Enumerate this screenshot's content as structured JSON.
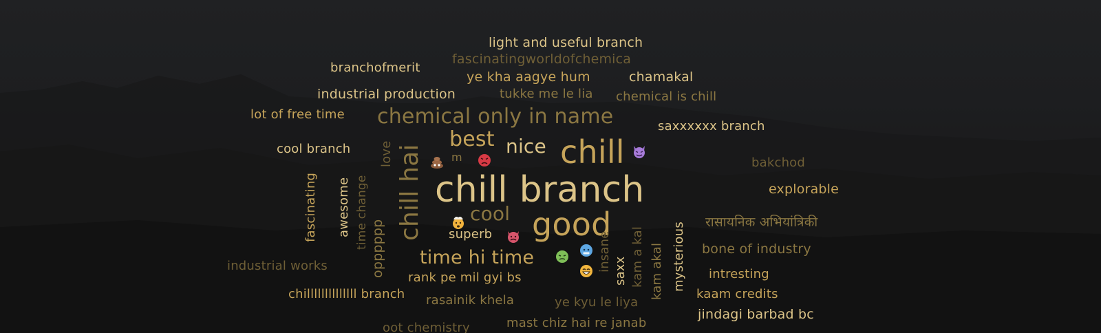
{
  "colors": {
    "bright": "#dcc488",
    "mid": "#c6a45a",
    "dim": "#8b7742",
    "dark": "#6f5f36"
  },
  "words": {
    "w1": "light and useful branch",
    "w2": "fascinatingworldofchemica",
    "w3": "branchofmerit",
    "w4": "ye kha aagye hum",
    "w5": "chamakal",
    "w6": "industrial production",
    "w7": "tukke me le lia",
    "w8": "chemical is chill",
    "w9": "lot of free time",
    "w10": "chemical only in name",
    "w11": "saxxxxxx branch",
    "w12": "cool branch",
    "w13": "best",
    "w14": "nice",
    "w15": "chill",
    "w16": "m",
    "w17": "bakchod",
    "w18": "chill branch",
    "w19": "explorable",
    "w20": "cool",
    "w21": "good",
    "w22": "रासायनिक अभियांत्रिकी",
    "w23": "superb",
    "w24": "bone of industry",
    "w25": "time hi time",
    "w26": "industrial works",
    "w27": "rank pe mil gyi bs",
    "w28": "intresting",
    "w29": "chillllllllllllll branch",
    "w30": "kaam credits",
    "w31": "rasainik khela",
    "w32": "ye kyu le liya",
    "w33": "jindagi barbad bc",
    "w34": "mast chiz hai re janab",
    "w35": "oot chemistry",
    "v1": "love",
    "v2": "chill hai",
    "v3": "fascinating",
    "v4": "awesome",
    "v5": "time change",
    "v6": "opppppp",
    "v7": "kam a kal",
    "v8": "insane",
    "v9": "saxx",
    "v10": "kam akal",
    "v11": "mysterious"
  },
  "emojis": [
    "devil-face",
    "poop",
    "angry-face",
    "exploding-head",
    "angry-devil",
    "nauseated-face",
    "cold-face",
    "grinning-face"
  ]
}
